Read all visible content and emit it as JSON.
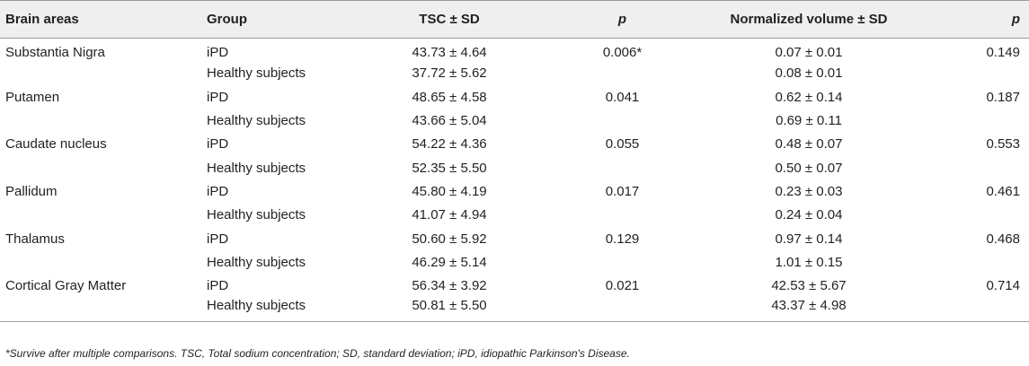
{
  "table": {
    "headers": {
      "brain_areas": "Brain areas",
      "group": "Group",
      "tsc": "TSC ± SD",
      "p1": "p",
      "volume": "Normalized volume ± SD",
      "p2": "p"
    },
    "rows": [
      {
        "area": "Substantia Nigra",
        "group": "iPD",
        "tsc": "43.73 ± 4.64",
        "p1": "0.006*",
        "volume": "0.07 ± 0.01",
        "p2": "0.149"
      },
      {
        "area": "",
        "group": "Healthy subjects",
        "tsc": "37.72 ± 5.62",
        "p1": "",
        "volume": "0.08 ± 0.01",
        "p2": ""
      },
      {
        "area": "Putamen",
        "group": "iPD",
        "tsc": "48.65 ± 4.58",
        "p1": "0.041",
        "volume": "0.62 ± 0.14",
        "p2": "0.187"
      },
      {
        "area": "",
        "group": "Healthy subjects",
        "tsc": "43.66 ± 5.04",
        "p1": "",
        "volume": "0.69 ± 0.11",
        "p2": ""
      },
      {
        "area": "Caudate nucleus",
        "group": "iPD",
        "tsc": "54.22 ± 4.36",
        "p1": "0.055",
        "volume": "0.48 ± 0.07",
        "p2": "0.553"
      },
      {
        "area": "",
        "group": "Healthy subjects",
        "tsc": "52.35 ± 5.50",
        "p1": "",
        "volume": "0.50 ± 0.07",
        "p2": ""
      },
      {
        "area": "Pallidum",
        "group": "iPD",
        "tsc": "45.80 ± 4.19",
        "p1": "0.017",
        "volume": "0.23 ± 0.03",
        "p2": "0.461"
      },
      {
        "area": "",
        "group": "Healthy subjects",
        "tsc": "41.07 ± 4.94",
        "p1": "",
        "volume": "0.24 ± 0.04",
        "p2": ""
      },
      {
        "area": "Thalamus",
        "group": "iPD",
        "tsc": "50.60 ± 5.92",
        "p1": "0.129",
        "volume": "0.97 ± 0.14",
        "p2": "0.468"
      },
      {
        "area": "",
        "group": "Healthy subjects",
        "tsc": "46.29 ± 5.14",
        "p1": "",
        "volume": "1.01 ± 0.15",
        "p2": ""
      },
      {
        "area": "Cortical Gray Matter",
        "group": "iPD",
        "tsc": "56.34 ± 3.92",
        "p1": "0.021",
        "volume": "42.53 ± 5.67",
        "p2": "0.714"
      },
      {
        "area": "",
        "group": "Healthy subjects",
        "tsc": "50.81 ± 5.50",
        "p1": "",
        "volume": "43.37 ± 4.98",
        "p2": ""
      }
    ]
  },
  "footnote": "*Survive after multiple comparisons. TSC, Total sodium concentration; SD, standard deviation; iPD, idiopathic Parkinson's Disease.",
  "colors": {
    "header_bg": "#efefef",
    "rule": "#9c9c9c",
    "text": "#231f20"
  }
}
